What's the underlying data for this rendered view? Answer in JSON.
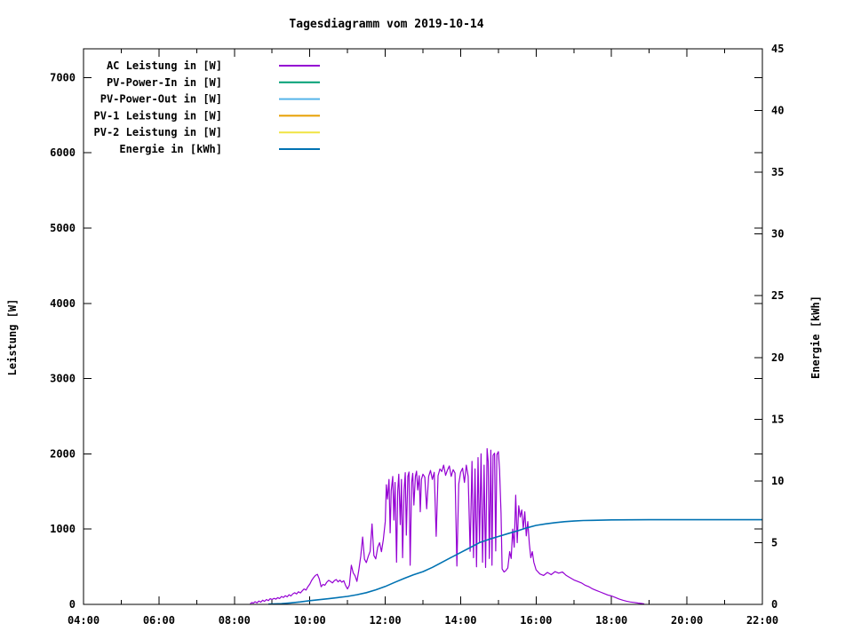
{
  "title": "Tagesdiagramm vom 2019-10-14",
  "colors": {
    "background": "#ffffff",
    "border": "#000000",
    "text": "#000000",
    "ac": "#9400d3",
    "pv_in": "#009e73",
    "pv_out": "#56b4e9",
    "pv1": "#e69f00",
    "pv2": "#f0e442",
    "energie": "#0072b2"
  },
  "axes": {
    "x": {
      "major_ticks": [
        "04:00",
        "06:00",
        "08:00",
        "10:00",
        "12:00",
        "14:00",
        "16:00",
        "18:00",
        "20:00",
        "22:00"
      ],
      "major_hours": [
        4,
        6,
        8,
        10,
        12,
        14,
        16,
        18,
        20,
        22
      ],
      "minor_hours": [
        5,
        7,
        9,
        11,
        13,
        15,
        17,
        19,
        21
      ],
      "range_hours": [
        4,
        22
      ]
    },
    "y_left": {
      "label": "Leistung [W]",
      "ticks": [
        "0",
        "1000",
        "2000",
        "3000",
        "4000",
        "5000",
        "6000",
        "7000"
      ],
      "tick_values": [
        0,
        1000,
        2000,
        3000,
        4000,
        5000,
        6000,
        7000
      ],
      "range": [
        0,
        7382
      ]
    },
    "y_right": {
      "label": "Energie [kWh]",
      "ticks": [
        "0",
        "5",
        "10",
        "15",
        "20",
        "25",
        "30",
        "35",
        "40",
        "45"
      ],
      "tick_values": [
        0,
        5,
        10,
        15,
        20,
        25,
        30,
        35,
        40,
        45
      ],
      "range": [
        0,
        45
      ]
    }
  },
  "legend": {
    "items": [
      {
        "label": "AC Leistung in [W]",
        "color": "#9400d3"
      },
      {
        "label": "PV-Power-In in [W]",
        "color": "#009e73"
      },
      {
        "label": "PV-Power-Out in [W]",
        "color": "#56b4e9"
      },
      {
        "label": "PV-1 Leistung in [W]",
        "color": "#e69f00"
      },
      {
        "label": "PV-2 Leistung in [W]",
        "color": "#f0e442"
      },
      {
        "label": "Energie in [kWh]",
        "color": "#0072b2"
      }
    ]
  },
  "chart_data": {
    "type": "line",
    "title": "Tagesdiagramm vom 2019-10-14",
    "xlabel": "",
    "x_unit": "time of day (HH:MM)",
    "x_range_hours": [
      4,
      22
    ],
    "ylabel_left": "Leistung [W]",
    "ylim_left": [
      0,
      7382
    ],
    "ylabel_right": "Energie [kWh]",
    "ylim_right": [
      0,
      45
    ],
    "grid": false,
    "legend_position": "top-left-inside",
    "series": [
      {
        "name": "AC Leistung in [W]",
        "axis": "left",
        "color": "#9400d3",
        "points": [
          [
            8.42,
            10
          ],
          [
            8.47,
            25
          ],
          [
            8.5,
            15
          ],
          [
            8.55,
            35
          ],
          [
            8.6,
            20
          ],
          [
            8.65,
            45
          ],
          [
            8.7,
            30
          ],
          [
            8.75,
            55
          ],
          [
            8.8,
            40
          ],
          [
            8.85,
            65
          ],
          [
            8.9,
            50
          ],
          [
            8.95,
            75
          ],
          [
            9.0,
            65
          ],
          [
            9.05,
            80
          ],
          [
            9.1,
            70
          ],
          [
            9.15,
            90
          ],
          [
            9.2,
            78
          ],
          [
            9.25,
            105
          ],
          [
            9.3,
            92
          ],
          [
            9.35,
            115
          ],
          [
            9.4,
            100
          ],
          [
            9.45,
            128
          ],
          [
            9.5,
            112
          ],
          [
            9.55,
            140
          ],
          [
            9.6,
            155
          ],
          [
            9.65,
            138
          ],
          [
            9.7,
            168
          ],
          [
            9.75,
            152
          ],
          [
            9.8,
            180
          ],
          [
            9.85,
            205
          ],
          [
            9.9,
            190
          ],
          [
            9.95,
            235
          ],
          [
            10.0,
            270
          ],
          [
            10.05,
            320
          ],
          [
            10.1,
            355
          ],
          [
            10.15,
            385
          ],
          [
            10.2,
            400
          ],
          [
            10.25,
            340
          ],
          [
            10.3,
            235
          ],
          [
            10.35,
            265
          ],
          [
            10.4,
            255
          ],
          [
            10.45,
            295
          ],
          [
            10.5,
            320
          ],
          [
            10.55,
            305
          ],
          [
            10.6,
            285
          ],
          [
            10.65,
            315
          ],
          [
            10.7,
            330
          ],
          [
            10.75,
            300
          ],
          [
            10.8,
            322
          ],
          [
            10.85,
            295
          ],
          [
            10.9,
            315
          ],
          [
            10.95,
            250
          ],
          [
            11.0,
            205
          ],
          [
            11.05,
            255
          ],
          [
            11.1,
            520
          ],
          [
            11.15,
            420
          ],
          [
            11.2,
            380
          ],
          [
            11.25,
            305
          ],
          [
            11.3,
            455
          ],
          [
            11.35,
            640
          ],
          [
            11.4,
            895
          ],
          [
            11.45,
            600
          ],
          [
            11.5,
            555
          ],
          [
            11.55,
            640
          ],
          [
            11.6,
            705
          ],
          [
            11.65,
            1070
          ],
          [
            11.7,
            650
          ],
          [
            11.75,
            605
          ],
          [
            11.8,
            760
          ],
          [
            11.85,
            820
          ],
          [
            11.9,
            700
          ],
          [
            11.95,
            860
          ],
          [
            12.0,
            1100
          ],
          [
            12.03,
            1590
          ],
          [
            12.06,
            1400
          ],
          [
            12.1,
            1660
          ],
          [
            12.13,
            950
          ],
          [
            12.16,
            1510
          ],
          [
            12.2,
            1700
          ],
          [
            12.23,
            1120
          ],
          [
            12.26,
            1620
          ],
          [
            12.3,
            560
          ],
          [
            12.33,
            1500
          ],
          [
            12.36,
            1730
          ],
          [
            12.4,
            1060
          ],
          [
            12.43,
            1660
          ],
          [
            12.46,
            620
          ],
          [
            12.5,
            1520
          ],
          [
            12.53,
            1750
          ],
          [
            12.56,
            920
          ],
          [
            12.6,
            1700
          ],
          [
            12.63,
            1760
          ],
          [
            12.66,
            520
          ],
          [
            12.7,
            1620
          ],
          [
            12.73,
            1740
          ],
          [
            12.76,
            1320
          ],
          [
            12.8,
            1700
          ],
          [
            12.83,
            1770
          ],
          [
            12.86,
            1520
          ],
          [
            12.9,
            1710
          ],
          [
            12.93,
            1230
          ],
          [
            12.96,
            1660
          ],
          [
            13.0,
            1730
          ],
          [
            13.05,
            1690
          ],
          [
            13.1,
            1270
          ],
          [
            13.15,
            1700
          ],
          [
            13.2,
            1780
          ],
          [
            13.25,
            1660
          ],
          [
            13.3,
            1755
          ],
          [
            13.35,
            905
          ],
          [
            13.4,
            1710
          ],
          [
            13.45,
            1800
          ],
          [
            13.5,
            1765
          ],
          [
            13.55,
            1850
          ],
          [
            13.6,
            1715
          ],
          [
            13.65,
            1785
          ],
          [
            13.7,
            1840
          ],
          [
            13.75,
            1700
          ],
          [
            13.8,
            1790
          ],
          [
            13.85,
            1745
          ],
          [
            13.9,
            510
          ],
          [
            13.95,
            1600
          ],
          [
            14.0,
            1755
          ],
          [
            14.05,
            1810
          ],
          [
            14.1,
            1620
          ],
          [
            14.15,
            1850
          ],
          [
            14.2,
            1700
          ],
          [
            14.25,
            705
          ],
          [
            14.3,
            1900
          ],
          [
            14.34,
            620
          ],
          [
            14.38,
            1800
          ],
          [
            14.42,
            500
          ],
          [
            14.46,
            1950
          ],
          [
            14.5,
            820
          ],
          [
            14.54,
            2000
          ],
          [
            14.58,
            560
          ],
          [
            14.62,
            1850
          ],
          [
            14.66,
            490
          ],
          [
            14.7,
            2070
          ],
          [
            14.73,
            1900
          ],
          [
            14.76,
            610
          ],
          [
            14.8,
            2050
          ],
          [
            14.83,
            520
          ],
          [
            14.86,
            1980
          ],
          [
            14.9,
            2010
          ],
          [
            14.93,
            710
          ],
          [
            14.96,
            1990
          ],
          [
            15.0,
            2030
          ],
          [
            15.03,
            1790
          ],
          [
            15.07,
            1210
          ],
          [
            15.1,
            470
          ],
          [
            15.15,
            430
          ],
          [
            15.2,
            450
          ],
          [
            15.25,
            485
          ],
          [
            15.3,
            700
          ],
          [
            15.34,
            610
          ],
          [
            15.38,
            1000
          ],
          [
            15.42,
            760
          ],
          [
            15.46,
            1450
          ],
          [
            15.5,
            820
          ],
          [
            15.54,
            1310
          ],
          [
            15.58,
            1160
          ],
          [
            15.62,
            1255
          ],
          [
            15.66,
            1010
          ],
          [
            15.7,
            1230
          ],
          [
            15.74,
            910
          ],
          [
            15.78,
            1100
          ],
          [
            15.82,
            810
          ],
          [
            15.86,
            620
          ],
          [
            15.9,
            700
          ],
          [
            15.94,
            560
          ],
          [
            16.0,
            460
          ],
          [
            16.1,
            405
          ],
          [
            16.2,
            385
          ],
          [
            16.3,
            425
          ],
          [
            16.4,
            395
          ],
          [
            16.5,
            435
          ],
          [
            16.6,
            415
          ],
          [
            16.7,
            430
          ],
          [
            16.8,
            385
          ],
          [
            16.9,
            355
          ],
          [
            17.0,
            325
          ],
          [
            17.1,
            305
          ],
          [
            17.2,
            285
          ],
          [
            17.3,
            255
          ],
          [
            17.4,
            235
          ],
          [
            17.5,
            205
          ],
          [
            17.6,
            185
          ],
          [
            17.7,
            165
          ],
          [
            17.8,
            145
          ],
          [
            17.9,
            125
          ],
          [
            18.0,
            112
          ],
          [
            18.1,
            92
          ],
          [
            18.2,
            72
          ],
          [
            18.3,
            55
          ],
          [
            18.4,
            42
          ],
          [
            18.5,
            32
          ],
          [
            18.6,
            26
          ],
          [
            18.7,
            18
          ],
          [
            18.8,
            12
          ],
          [
            18.87,
            6
          ]
        ]
      },
      {
        "name": "PV-Power-In in [W]",
        "axis": "left",
        "color": "#009e73",
        "points": []
      },
      {
        "name": "PV-Power-Out in [W]",
        "axis": "left",
        "color": "#56b4e9",
        "points": []
      },
      {
        "name": "PV-1 Leistung in [W]",
        "axis": "left",
        "color": "#e69f00",
        "points": []
      },
      {
        "name": "PV-2 Leistung in [W]",
        "axis": "left",
        "color": "#f0e442",
        "points": []
      },
      {
        "name": "Energie in [kWh]",
        "axis": "right",
        "color": "#0072b2",
        "points": [
          [
            8.9,
            0.02
          ],
          [
            9.25,
            0.06
          ],
          [
            9.5,
            0.12
          ],
          [
            9.75,
            0.2
          ],
          [
            10.0,
            0.3
          ],
          [
            10.25,
            0.38
          ],
          [
            10.5,
            0.46
          ],
          [
            10.75,
            0.55
          ],
          [
            11.0,
            0.65
          ],
          [
            11.25,
            0.78
          ],
          [
            11.5,
            0.95
          ],
          [
            11.75,
            1.18
          ],
          [
            12.0,
            1.45
          ],
          [
            12.25,
            1.78
          ],
          [
            12.5,
            2.1
          ],
          [
            12.75,
            2.4
          ],
          [
            13.0,
            2.65
          ],
          [
            13.25,
            3.0
          ],
          [
            13.5,
            3.4
          ],
          [
            13.75,
            3.8
          ],
          [
            14.0,
            4.2
          ],
          [
            14.25,
            4.6
          ],
          [
            14.5,
            5.0
          ],
          [
            14.75,
            5.27
          ],
          [
            15.0,
            5.5
          ],
          [
            15.25,
            5.73
          ],
          [
            15.5,
            5.95
          ],
          [
            15.75,
            6.2
          ],
          [
            16.0,
            6.4
          ],
          [
            16.25,
            6.52
          ],
          [
            16.5,
            6.62
          ],
          [
            16.75,
            6.7
          ],
          [
            17.0,
            6.75
          ],
          [
            17.25,
            6.79
          ],
          [
            17.5,
            6.81
          ],
          [
            18.0,
            6.84
          ],
          [
            18.5,
            6.85
          ],
          [
            19.0,
            6.86
          ],
          [
            20.0,
            6.86
          ],
          [
            21.0,
            6.86
          ],
          [
            22.0,
            6.86
          ]
        ]
      }
    ]
  }
}
